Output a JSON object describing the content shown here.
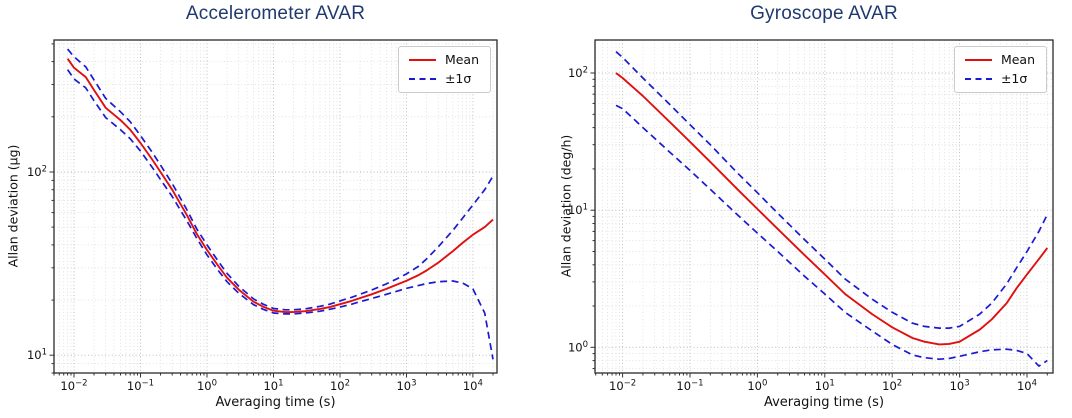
{
  "colors": {
    "title": "#1e3a6e",
    "mean_line": "#e01010",
    "sigma_line": "#1a1ad2",
    "grid_major": "#b5b5b5",
    "grid_minor": "#dadada",
    "spine": "#2a2a2a"
  },
  "chart_data": [
    {
      "type": "line",
      "title": "Accelerometer AVAR",
      "xlabel": "Averaging time (s)",
      "ylabel": "Allan deviation (μg)",
      "xscale": "log",
      "yscale": "log",
      "grid": "both-dotted",
      "legend_position": "upper right",
      "legend": [
        "Mean",
        "±1σ"
      ],
      "xlim": [
        0.005,
        23000
      ],
      "ylim": [
        8,
        525
      ],
      "x_ticks": [
        "10^-2",
        "10^-1",
        "10^0",
        "10^1",
        "10^2",
        "10^3",
        "10^4"
      ],
      "y_ticks": [
        "10^1",
        "10^2"
      ],
      "x": [
        0.008,
        0.01,
        0.015,
        0.02,
        0.03,
        0.05,
        0.07,
        0.1,
        0.15,
        0.2,
        0.3,
        0.5,
        0.7,
        1,
        1.5,
        2,
        3,
        5,
        7,
        10,
        15,
        20,
        30,
        50,
        70,
        100,
        150,
        200,
        300,
        500,
        700,
        1000,
        1500,
        2000,
        3000,
        5000,
        7000,
        10000,
        15000,
        20000
      ],
      "series": [
        {
          "key": "mean",
          "name": "Mean",
          "style": "solid",
          "color": "#e01010",
          "values": [
            415,
            370,
            330,
            280,
            224,
            192,
            170,
            144,
            117,
            100,
            80,
            58,
            46,
            37.5,
            30.5,
            26.5,
            22.8,
            19.6,
            18.4,
            17.5,
            17.2,
            17.2,
            17.4,
            17.9,
            18.3,
            19,
            19.8,
            20.5,
            21.5,
            23,
            24.2,
            25.5,
            27.3,
            29,
            32,
            37,
            41,
            45.5,
            50,
            55
          ]
        },
        {
          "key": "sigma-upper",
          "name": "+1σ",
          "style": "dashed",
          "color": "#1a1ad2",
          "values": [
            468,
            425,
            375,
            318,
            252,
            213,
            188,
            158,
            128,
            109,
            86.5,
            62,
            49,
            40,
            32.3,
            28,
            23.8,
            20.3,
            19,
            18,
            17.7,
            17.7,
            17.9,
            18.5,
            19,
            19.8,
            20.7,
            21.5,
            22.7,
            24.5,
            26,
            27.8,
            30.5,
            33.5,
            39,
            48,
            56,
            66,
            80,
            95
          ]
        },
        {
          "key": "sigma-lower",
          "name": "-1σ",
          "style": "dashed",
          "color": "#1a1ad2",
          "values": [
            362,
            322,
            288,
            245,
            198,
            170,
            152,
            130,
            106,
            91,
            73.5,
            54,
            43.5,
            35.3,
            28.8,
            25.2,
            21.8,
            18.9,
            17.8,
            17,
            16.8,
            16.8,
            17,
            17.4,
            17.8,
            18.3,
            19,
            19.6,
            20.4,
            21.5,
            22.3,
            23.2,
            24,
            24.6,
            25.2,
            25.4,
            24.8,
            23,
            17,
            9.5
          ]
        }
      ]
    },
    {
      "type": "line",
      "title": "Gyroscope AVAR",
      "xlabel": "Averaging time (s)",
      "ylabel": "Allan deviation (deg/h)",
      "xscale": "log",
      "yscale": "log",
      "grid": "both-dotted",
      "legend_position": "upper right",
      "legend": [
        "Mean",
        "±1σ"
      ],
      "xlim": [
        0.0039,
        24300
      ],
      "ylim": [
        0.65,
        174
      ],
      "x_ticks": [
        "10^-2",
        "10^-1",
        "10^0",
        "10^1",
        "10^2",
        "10^3",
        "10^4"
      ],
      "y_ticks": [
        "10^0",
        "10^1",
        "10^2"
      ],
      "x": [
        0.008,
        0.01,
        0.02,
        0.05,
        0.1,
        0.2,
        0.5,
        1,
        2,
        5,
        10,
        20,
        50,
        100,
        200,
        300,
        500,
        700,
        1000,
        2000,
        3000,
        5000,
        7000,
        10000,
        15000,
        20000
      ],
      "series": [
        {
          "key": "mean",
          "name": "Mean",
          "style": "solid",
          "color": "#e01010",
          "values": [
            100,
            92,
            68,
            44,
            31.5,
            22.5,
            14.3,
            10.2,
            7.3,
            4.7,
            3.4,
            2.45,
            1.75,
            1.4,
            1.17,
            1.1,
            1.05,
            1.06,
            1.1,
            1.35,
            1.6,
            2.1,
            2.7,
            3.4,
            4.4,
            5.3
          ]
        },
        {
          "key": "sigma-upper",
          "name": "+1σ",
          "style": "dashed",
          "color": "#1a1ad2",
          "values": [
            143,
            130,
            92,
            59,
            42,
            30,
            18.8,
            13.4,
            9.5,
            6.1,
            4.4,
            3.15,
            2.25,
            1.8,
            1.5,
            1.42,
            1.38,
            1.38,
            1.42,
            1.75,
            2.1,
            2.9,
            3.8,
            5,
            7,
            9.3
          ]
        },
        {
          "key": "sigma-lower",
          "name": "-1σ",
          "style": "dashed",
          "color": "#1a1ad2",
          "values": [
            58,
            55,
            40,
            26.5,
            19.5,
            14.2,
            9.3,
            6.8,
            5,
            3.3,
            2.45,
            1.8,
            1.32,
            1.05,
            0.88,
            0.84,
            0.82,
            0.83,
            0.86,
            0.93,
            0.96,
            0.97,
            0.95,
            0.9,
            0.73,
            0.8
          ]
        }
      ]
    }
  ]
}
